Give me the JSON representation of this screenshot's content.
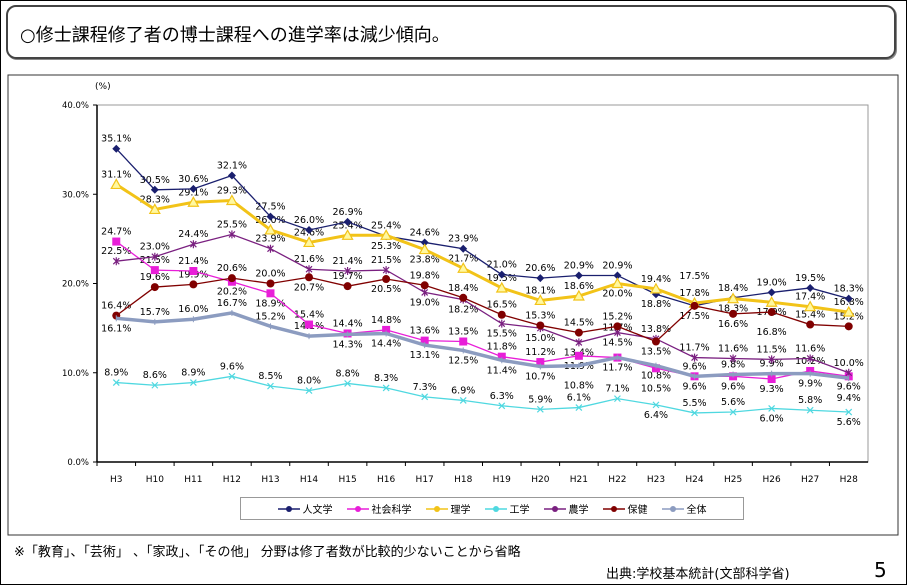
{
  "header": {
    "title": "○修士課程修了者の博士課程への進学率は減少傾向。"
  },
  "footer": {
    "note": "※「教育」、「芸術」 、「家政」、「その他」 分野は修了者数が比較的少ないことから省略",
    "source": "出典:学校基本統計(文部科学省)",
    "page_number": "5"
  },
  "chart_data": {
    "type": "line",
    "title": "",
    "xlabel": "",
    "ylabel": "(%)",
    "ylim": [
      0,
      40
    ],
    "yticks": [
      "0.0%",
      "10.0%",
      "20.0%",
      "30.0%",
      "40.0%"
    ],
    "grid": false,
    "legend_position": "bottom",
    "categories": [
      "H3",
      "H10",
      "H11",
      "H12",
      "H13",
      "H14",
      "H15",
      "H16",
      "H17",
      "H18",
      "H19",
      "H20",
      "H21",
      "H22",
      "H23",
      "H24",
      "H25",
      "H26",
      "H27",
      "H28"
    ],
    "series": [
      {
        "name": "人文学",
        "color": "#1a1f6e",
        "marker": "diamond",
        "values": [
          35.1,
          30.5,
          30.6,
          32.1,
          27.5,
          26.0,
          26.9,
          25.3,
          24.6,
          23.9,
          21.0,
          20.6,
          20.9,
          20.9,
          18.8,
          17.5,
          18.4,
          19.0,
          19.5,
          18.3
        ]
      },
      {
        "name": "社会科学",
        "color": "#e81ed8",
        "marker": "square",
        "values": [
          24.7,
          21.5,
          21.4,
          20.2,
          18.9,
          15.4,
          14.4,
          14.8,
          13.6,
          13.5,
          11.8,
          11.2,
          11.9,
          11.7,
          10.5,
          9.6,
          9.6,
          9.3,
          10.2,
          9.6
        ]
      },
      {
        "name": "理学",
        "color": "#f2c318",
        "marker": "triangle",
        "values": [
          31.1,
          28.3,
          29.1,
          29.3,
          26.0,
          24.6,
          25.4,
          25.4,
          23.8,
          21.7,
          19.5,
          18.1,
          18.6,
          20.0,
          19.4,
          17.8,
          18.3,
          17.9,
          17.4,
          16.8
        ]
      },
      {
        "name": "工学",
        "color": "#4fd8e0",
        "marker": "x",
        "values": [
          8.9,
          8.6,
          8.9,
          9.6,
          8.5,
          8.0,
          8.8,
          8.3,
          7.3,
          6.9,
          6.3,
          5.9,
          6.1,
          7.1,
          6.4,
          5.5,
          5.6,
          6.0,
          5.8,
          5.6
        ]
      },
      {
        "name": "農学",
        "color": "#7a2080",
        "marker": "asterisk",
        "values": [
          22.5,
          23.0,
          24.4,
          25.5,
          23.9,
          21.6,
          21.4,
          21.5,
          19.0,
          18.2,
          15.5,
          15.0,
          13.4,
          14.5,
          13.8,
          11.7,
          11.6,
          11.5,
          11.6,
          10.0
        ]
      },
      {
        "name": "保健",
        "color": "#800000",
        "marker": "circle",
        "values": [
          16.4,
          19.6,
          19.9,
          20.6,
          20.0,
          20.7,
          19.7,
          20.5,
          19.8,
          18.4,
          16.5,
          15.3,
          14.5,
          15.2,
          13.5,
          17.5,
          16.6,
          16.8,
          15.4,
          15.2
        ]
      },
      {
        "name": "全体",
        "color": "#8c9cc0",
        "marker": "plus",
        "values": [
          16.1,
          15.7,
          16.0,
          16.7,
          15.2,
          14.1,
          14.3,
          14.4,
          13.1,
          12.5,
          11.4,
          10.7,
          10.8,
          11.7,
          10.8,
          9.6,
          9.8,
          9.9,
          9.9,
          9.4
        ]
      }
    ]
  }
}
